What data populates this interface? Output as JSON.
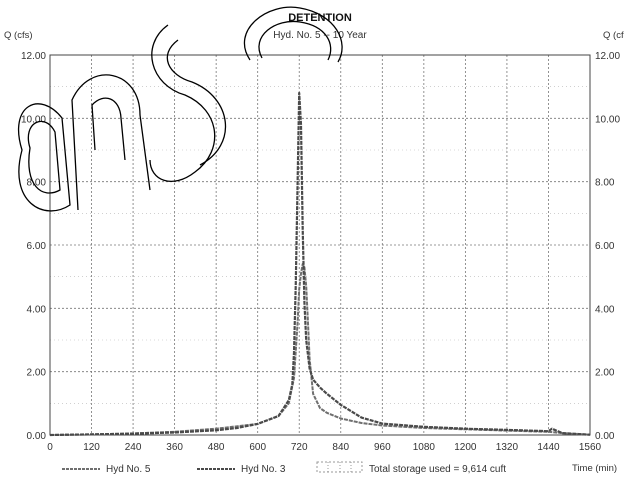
{
  "chart_data": {
    "type": "line",
    "title": "DETENTION",
    "subtitle": "Hyd. No. 5 -- 10 Year",
    "ylabel_left": "Q (cfs)",
    "ylabel_right": "Q (cfs)",
    "xlabel": "Time (min)",
    "xlim": [
      0,
      1560
    ],
    "ylim": [
      0,
      12
    ],
    "x_ticks": [
      "0",
      "120",
      "240",
      "360",
      "480",
      "600",
      "720",
      "840",
      "960",
      "1080",
      "1200",
      "1320",
      "1440",
      "1560"
    ],
    "x_tick_values": [
      0,
      120,
      240,
      360,
      480,
      600,
      720,
      840,
      960,
      1080,
      1200,
      1320,
      1440,
      1560
    ],
    "y_ticks": [
      "0.00",
      "2.00",
      "4.00",
      "6.00",
      "8.00",
      "10.00",
      "12.00"
    ],
    "y_tick_values": [
      0,
      2,
      4,
      6,
      8,
      10,
      12
    ],
    "grid": true,
    "legend_position": "bottom",
    "series": [
      {
        "name": "Hyd No. 5",
        "color": "#6f6f6f",
        "x": [
          0,
          120,
          240,
          360,
          480,
          600,
          660,
          690,
          705,
          715,
          720,
          725,
          730,
          735,
          740,
          745,
          750,
          760,
          780,
          800,
          840,
          900,
          960,
          1080,
          1200,
          1320,
          1440,
          1500,
          1560
        ],
        "y": [
          0,
          0.02,
          0.05,
          0.1,
          0.2,
          0.35,
          0.6,
          1.0,
          1.8,
          3.5,
          4.6,
          5.1,
          5.4,
          5.3,
          4.7,
          3.6,
          2.4,
          1.3,
          0.85,
          0.7,
          0.52,
          0.38,
          0.3,
          0.22,
          0.18,
          0.14,
          0.1,
          0.04,
          0.01
        ]
      },
      {
        "name": "Hyd No. 3",
        "color": "#4a4a4a",
        "x": [
          0,
          120,
          240,
          360,
          480,
          540,
          600,
          660,
          690,
          700,
          705,
          710,
          715,
          720,
          725,
          730,
          735,
          740,
          750,
          760,
          780,
          800,
          840,
          900,
          960,
          1080,
          1200,
          1320,
          1440,
          1450,
          1480,
          1560
        ],
        "y": [
          0,
          0.02,
          0.04,
          0.08,
          0.15,
          0.22,
          0.35,
          0.6,
          1.1,
          1.6,
          2.6,
          4.8,
          7.8,
          10.8,
          9.8,
          6.5,
          4.2,
          3.0,
          2.1,
          1.75,
          1.5,
          1.3,
          0.95,
          0.55,
          0.36,
          0.26,
          0.2,
          0.16,
          0.12,
          0.2,
          0.06,
          0.01
        ]
      }
    ],
    "annotation": "Total storage used = 9,614 cuft"
  }
}
